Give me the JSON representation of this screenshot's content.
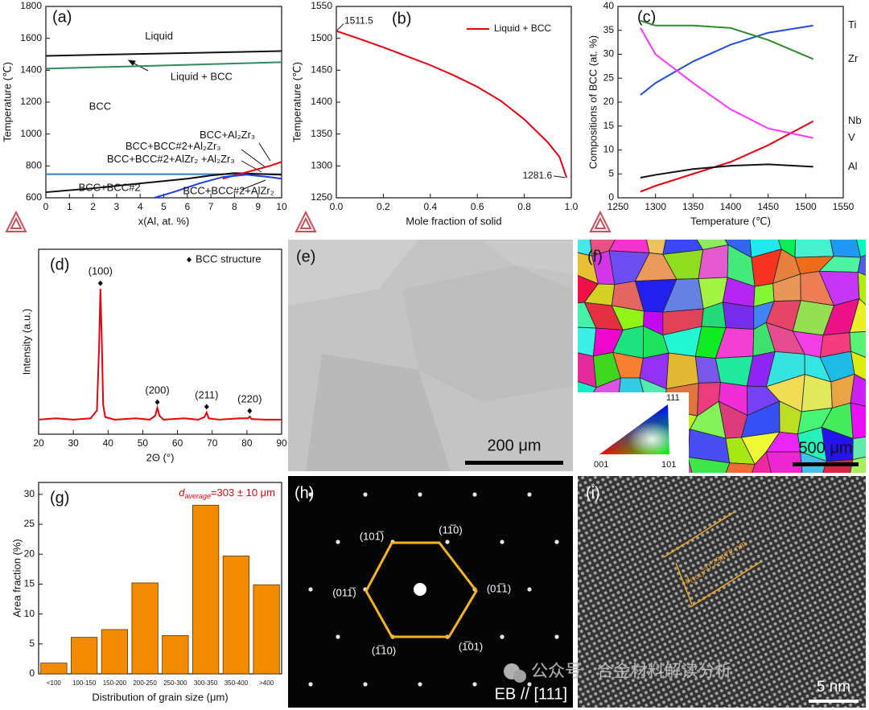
{
  "chart_data": [
    {
      "type": "line",
      "panel_label": "(a)",
      "x_label": "x(Al, at. %)",
      "y_label": "Temperature (℃)",
      "xlim": [
        0,
        10
      ],
      "xticks": [
        0,
        1,
        2,
        3,
        4,
        5,
        6,
        7,
        8,
        9,
        10
      ],
      "ylim": [
        600,
        1800
      ],
      "yticks": [
        600,
        800,
        1000,
        1200,
        1400,
        1600,
        1800
      ],
      "series": [
        {
          "color": "#111111",
          "x": [
            0,
            10
          ],
          "values": [
            1490,
            1520
          ]
        },
        {
          "color": "#2e8b57",
          "x": [
            0,
            10
          ],
          "values": [
            1410,
            1450
          ]
        },
        {
          "color": "#3b7bbf",
          "x": [
            0,
            10
          ],
          "values": [
            748,
            748
          ]
        },
        {
          "color": "#111111",
          "x": [
            0,
            2,
            4,
            6,
            7,
            8,
            9,
            10
          ],
          "values": [
            635,
            660,
            690,
            720,
            740,
            755,
            750,
            745
          ]
        },
        {
          "color": "#e8000b",
          "x": [
            7.5,
            8.5,
            9.5,
            10
          ],
          "values": [
            720,
            760,
            800,
            825
          ]
        },
        {
          "color": "#1f3cf0",
          "x": [
            4.6,
            5.5,
            6.5,
            7.5,
            8.5,
            9.5,
            10
          ],
          "values": [
            600,
            640,
            690,
            730,
            745,
            730,
            720
          ]
        }
      ],
      "annotations": [
        {
          "text": "Liquid",
          "x": 4.8,
          "y": 1610
        },
        {
          "text": "Liquid + BCC",
          "x": 6.6,
          "y": 1355
        },
        {
          "text": "BCC",
          "x": 2.3,
          "y": 1170
        },
        {
          "text": "BCC+Al₂Zr₃",
          "x": 7.7,
          "y": 990
        },
        {
          "text": "BCC+BCC#2+Al₂Zr₃",
          "x": 5.4,
          "y": 920
        },
        {
          "text": "BCC+BCC#2+AlZr₂ +Al₂Zr₃",
          "x": 5.3,
          "y": 840
        },
        {
          "text": "BCC+BCC#2",
          "x": 2.7,
          "y": 660
        },
        {
          "text": "BCC+BCC#2+AlZr₂",
          "x": 7.75,
          "y": 640
        }
      ]
    },
    {
      "type": "line",
      "panel_label": "(b)",
      "x_label": "Mole fraction of solid",
      "y_label": "Temperature (℃)",
      "xlim": [
        0,
        1
      ],
      "xticks": [
        {
          "value": 0,
          "label": "0.0"
        },
        0.2,
        0.4,
        0.6,
        0.8,
        {
          "value": 1,
          "label": "1.0"
        }
      ],
      "ylim": [
        1250,
        1550
      ],
      "yticks": [
        1250,
        1300,
        1350,
        1400,
        1450,
        1500,
        1550
      ],
      "legend": "upper right",
      "endpoint_labels": true,
      "x": [
        0,
        0.1,
        0.2,
        0.3,
        0.4,
        0.5,
        0.6,
        0.7,
        0.8,
        0.9,
        0.95,
        0.98
      ],
      "series": [
        {
          "name": "Liquid + BCC",
          "color": "#e8000b",
          "values": [
            1511.5,
            1499,
            1486,
            1472,
            1458,
            1442,
            1424,
            1402,
            1373,
            1337,
            1314,
            1281.6
          ]
        }
      ]
    },
    {
      "type": "line",
      "panel_label": "(c)",
      "x_label": "Temperature (℃)",
      "y_label": "Compositions of BCC (at. %)",
      "xlim": [
        1250,
        1550
      ],
      "xticks": [
        1250,
        1300,
        1350,
        1400,
        1450,
        1500,
        1550
      ],
      "ylim": [
        0,
        40
      ],
      "yticks": [
        0,
        5,
        10,
        15,
        20,
        25,
        30,
        35,
        40
      ],
      "end_labels": true,
      "x": [
        1280,
        1300,
        1350,
        1400,
        1450,
        1510
      ],
      "series": [
        {
          "name": "Ti",
          "color": "#1f4fe0",
          "values": [
            21.5,
            24,
            28.5,
            32,
            34.5,
            36
          ]
        },
        {
          "name": "Zr",
          "color": "#2e8b2e",
          "values": [
            37,
            36,
            36,
            35.5,
            33,
            29
          ]
        },
        {
          "name": "Nb",
          "color": "#e8000b",
          "values": [
            1.3,
            2.5,
            5,
            7.5,
            11,
            16
          ]
        },
        {
          "name": "V",
          "color": "#ff33ff",
          "values": [
            35.5,
            30,
            24,
            18.5,
            14.5,
            12.5
          ]
        },
        {
          "name": "Al",
          "color": "#111111",
          "values": [
            4.2,
            4.8,
            6,
            6.7,
            7,
            6.5
          ]
        }
      ]
    },
    {
      "type": "line",
      "panel_label": "(d)",
      "x_label": "2Θ (°)",
      "y_label": "Intensity (a.u.)",
      "xlim": [
        20,
        90
      ],
      "xticks": [
        20,
        30,
        40,
        50,
        60,
        70,
        80,
        90
      ],
      "ylim": [
        -0.1,
        1.3
      ],
      "x": [
        20,
        25,
        30,
        35,
        36.8,
        37.4,
        37.8,
        38.2,
        38.6,
        39.2,
        42,
        48,
        52,
        53.6,
        54.2,
        54.8,
        56,
        62,
        66,
        67.8,
        68.4,
        69,
        72,
        78,
        80.3,
        80.8,
        81.3,
        85,
        90
      ],
      "series": [
        {
          "color": "#e8000b",
          "values": [
            0.01,
            0.02,
            0.01,
            0.02,
            0.08,
            0.55,
            1.0,
            0.6,
            0.12,
            0.03,
            0.01,
            0.02,
            0.01,
            0.04,
            0.1,
            0.04,
            0.01,
            0.02,
            0.01,
            0.03,
            0.065,
            0.02,
            0.01,
            0.02,
            0.02,
            0.034,
            0.015,
            0.01,
            0.01
          ]
        }
      ],
      "peaks": {
        "name": "BCC structure",
        "labels": [
          "(100)",
          "(200)",
          "(211)",
          "(220)"
        ],
        "x": [
          37.8,
          54.2,
          68.4,
          80.8
        ],
        "values": [
          1.0,
          0.1,
          0.065,
          0.034
        ]
      }
    },
    {
      "type": "bar",
      "panel_label": "(g)",
      "x_label": "Distribution of grain size (μm)",
      "y_label": "Area fraction (%)",
      "categories": [
        "<100",
        "100-150",
        "150-200",
        "200-250",
        "250-300",
        "300-350",
        "350-400",
        ">400"
      ],
      "values": [
        1.8,
        6.1,
        7.4,
        15.2,
        6.4,
        28.2,
        19.7,
        14.9
      ],
      "color": "#f38b00",
      "ylim": [
        0,
        32
      ],
      "yticks": [
        0,
        5,
        10,
        15,
        20,
        25,
        30
      ],
      "annotation": {
        "symbol": "d",
        "subscript": "average",
        "text": "=303 ± 10 μm"
      }
    }
  ],
  "image_panels": {
    "e": {
      "label": "(e)",
      "scale_bar": "200 μm"
    },
    "f": {
      "label": "(f)",
      "scale_bar": "500 μm",
      "ipf_labels": [
        "111",
        "001",
        "101"
      ]
    },
    "h": {
      "label": "(h)",
      "spot_labels": [
        "(101̅)",
        "(11̅0)",
        "(011̅)",
        "(01̅1)",
        "(1̅10)",
        "(1̅01)"
      ],
      "caption": "EB // [111]"
    },
    "i": {
      "label": "(i)",
      "symbol": "d",
      "subscript": "(101)",
      "text": "=0.23472 nm",
      "scale_bar": "5 nm"
    }
  },
  "watermark": "公众号 · 合金材料解读分析"
}
